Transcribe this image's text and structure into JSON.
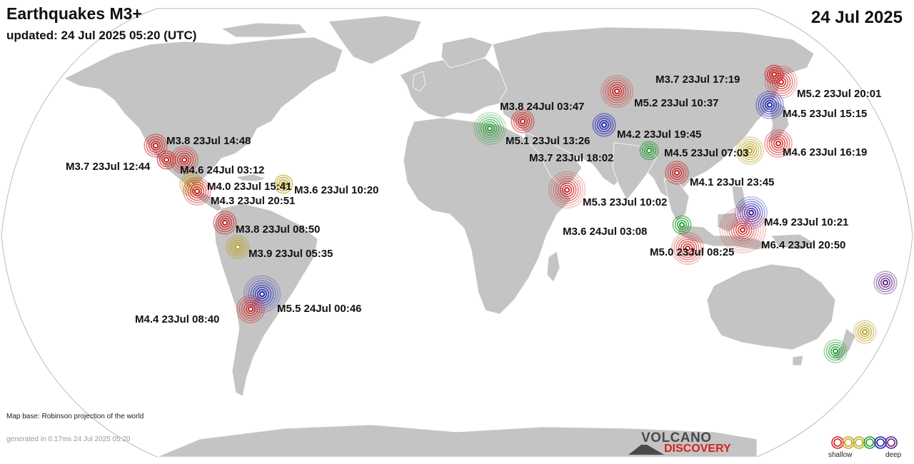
{
  "header": {
    "title": "Earthquakes M3+",
    "updated": "updated: 24 Jul 2025 05:20 (UTC)",
    "date": "24 Jul 2025"
  },
  "footer": {
    "map_base": "Map base: Robinson projection of the world",
    "generated": "generated in 0.17ms 24 Jul 2025 05:20"
  },
  "brand": {
    "top": "VOLCANO",
    "bottom": "DISCOVERY"
  },
  "legend": {
    "shallow": "shallow",
    "deep": "deep",
    "depth_colors": [
      "#d42020",
      "#d42020",
      "#c9a020",
      "#b8b020",
      "#20a020",
      "#2020c0",
      "#602080"
    ]
  },
  "colors": {
    "land": "#c4c4c4",
    "ocean": "#ffffff",
    "border": "#ffffff",
    "shallow_red": "#d42020",
    "mid_yellow": "#b8a020",
    "mid_green": "#20a030",
    "deep_blue": "#2020c0",
    "deep_purple": "#602080"
  },
  "earthquakes": [
    {
      "label": "M3.8 23Jul 14:48",
      "mag": 3.8,
      "depth": "shallow"
    },
    {
      "label": "M3.7 23Jul 12:44",
      "mag": 3.7,
      "depth": "shallow"
    },
    {
      "label": "M4.6 24Jul 03:12",
      "mag": 4.6,
      "depth": "shallow"
    },
    {
      "label": "M4.0 23Jul 15:41",
      "mag": 4.0,
      "depth": "intermediate"
    },
    {
      "label": "M3.6 23Jul 10:20",
      "mag": 3.6,
      "depth": "intermediate"
    },
    {
      "label": "M4.3 23Jul 20:51",
      "mag": 4.3,
      "depth": "shallow"
    },
    {
      "label": "M3.8 23Jul 08:50",
      "mag": 3.8,
      "depth": "shallow"
    },
    {
      "label": "M3.9 23Jul 05:35",
      "mag": 3.9,
      "depth": "intermediate"
    },
    {
      "label": "M5.5 24Jul 00:46",
      "mag": 5.5,
      "depth": "deep"
    },
    {
      "label": "M4.4 23Jul 08:40",
      "mag": 4.4,
      "depth": "shallow"
    },
    {
      "label": "M3.8 24Jul 03:47",
      "mag": 3.8,
      "depth": "shallow"
    },
    {
      "label": "M5.1 23Jul 13:26",
      "mag": 5.1,
      "depth": "intermediate-green"
    },
    {
      "label": "M5.2 23Jul 10:37",
      "mag": 5.2,
      "depth": "shallow"
    },
    {
      "label": "M4.2 23Jul 19:45",
      "mag": 4.2,
      "depth": "deep"
    },
    {
      "label": "M3.7 23Jul 18:02",
      "mag": 3.7,
      "depth": "intermediate-green"
    },
    {
      "label": "M4.5 23Jul 07:03",
      "mag": 4.5,
      "depth": "intermediate"
    },
    {
      "label": "M5.3 23Jul 10:02",
      "mag": 5.3,
      "depth": "shallow"
    },
    {
      "label": "M4.1 23Jul 23:45",
      "mag": 4.1,
      "depth": "shallow"
    },
    {
      "label": "M3.6 24Jul 03:08",
      "mag": 3.6,
      "depth": "intermediate-green"
    },
    {
      "label": "M5.0 23Jul 08:25",
      "mag": 5.0,
      "depth": "shallow"
    },
    {
      "label": "M3.7 23Jul 17:19",
      "mag": 3.7,
      "depth": "shallow"
    },
    {
      "label": "M5.2 23Jul 20:01",
      "mag": 5.2,
      "depth": "shallow"
    },
    {
      "label": "M4.5 23Jul 15:15",
      "mag": 4.5,
      "depth": "deep"
    },
    {
      "label": "M4.6 23Jul 16:19",
      "mag": 4.6,
      "depth": "shallow"
    },
    {
      "label": "M4.9 23Jul 10:21",
      "mag": 4.9,
      "depth": "deep"
    },
    {
      "label": "M6.4 23Jul 20:50",
      "mag": 6.4,
      "depth": "shallow"
    }
  ]
}
